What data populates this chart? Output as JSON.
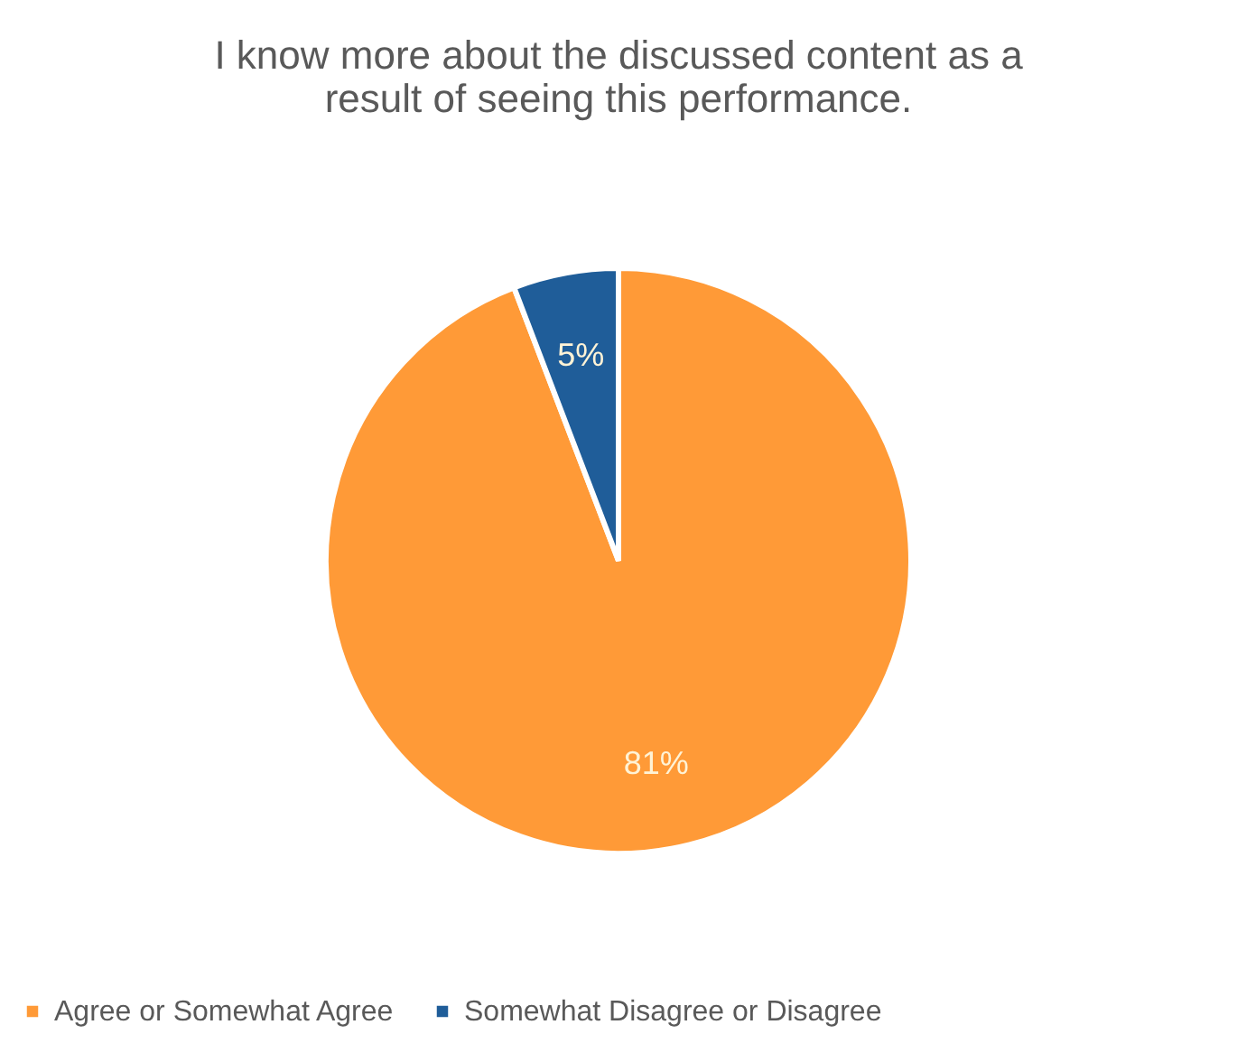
{
  "chart_data": {
    "type": "pie",
    "title": "I know more about the discussed content as a result of seeing this performance.",
    "categories": [
      "Agree or Somewhat Agree",
      "Somewhat Disagree or Disagree"
    ],
    "values": [
      81,
      5
    ],
    "colors": [
      "#ff9a37",
      "#1f5d99"
    ],
    "value_labels": [
      "81%",
      "5%"
    ],
    "legend": "bottom"
  }
}
